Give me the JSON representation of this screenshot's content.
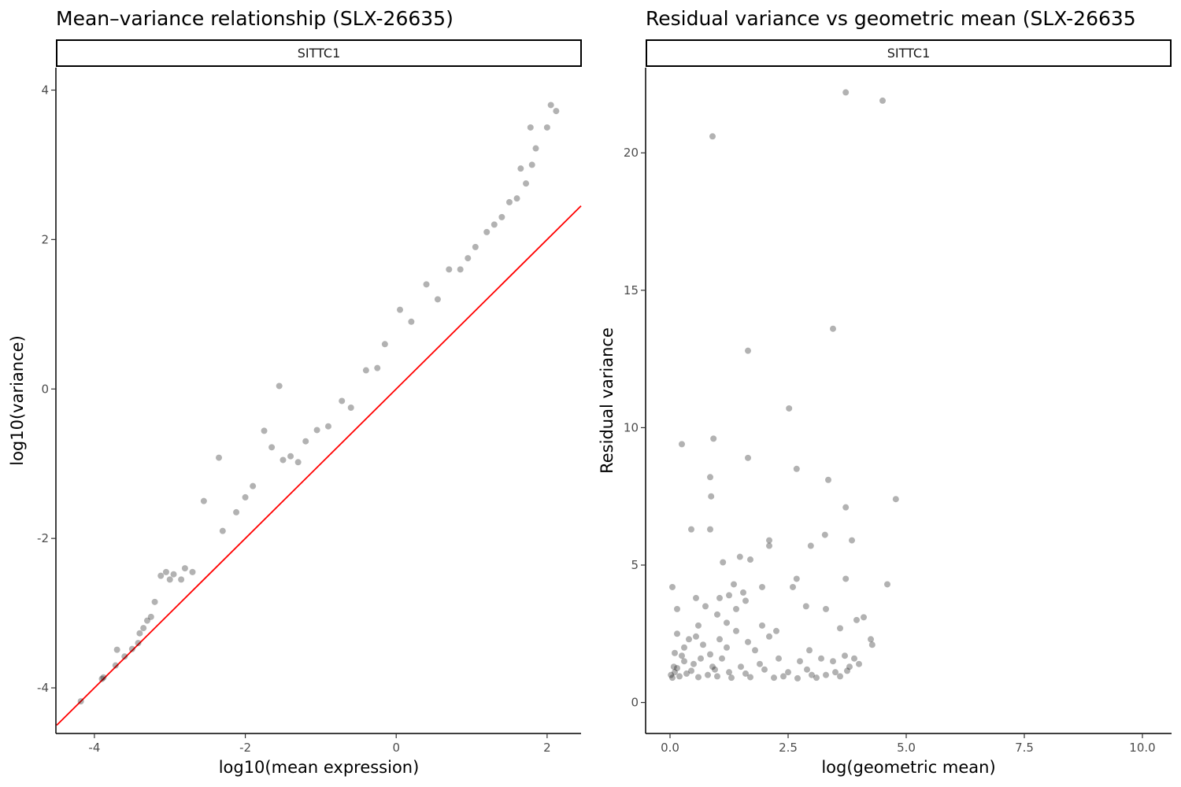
{
  "chart_data": [
    {
      "type": "scatter",
      "title": "Mean–variance relationship (SLX-26635)",
      "facet_label": "SITTC1",
      "xlabel": "log10(mean expression)",
      "ylabel": "log10(variance)",
      "xlim": [
        -4.5,
        2.45
      ],
      "ylim": [
        -4.6,
        4.3
      ],
      "x_ticks": [
        -4,
        -2,
        0,
        2
      ],
      "x_tick_labels": [
        "-4",
        "-2",
        "0",
        "2"
      ],
      "y_ticks": [
        -4,
        -2,
        0,
        2,
        4
      ],
      "y_tick_labels": [
        "-4",
        "-2",
        "0",
        "2",
        "4"
      ],
      "grid": false,
      "point_color": "#000000",
      "point_alpha": 0.3,
      "reference_line": {
        "intercept": 0,
        "slope": 1,
        "color": "#ff0000"
      },
      "series": [
        {
          "values": [
            {
              "x": -4.18,
              "y": -4.18
            },
            {
              "x": -3.9,
              "y": -3.88
            },
            {
              "x": -3.88,
              "y": -3.86
            },
            {
              "x": -3.72,
              "y": -3.7
            },
            {
              "x": -3.7,
              "y": -3.49
            },
            {
              "x": -3.6,
              "y": -3.58
            },
            {
              "x": -3.5,
              "y": -3.48
            },
            {
              "x": -3.42,
              "y": -3.4
            },
            {
              "x": -3.4,
              "y": -3.27
            },
            {
              "x": -3.35,
              "y": -3.2
            },
            {
              "x": -3.3,
              "y": -3.1
            },
            {
              "x": -3.25,
              "y": -3.05
            },
            {
              "x": -3.2,
              "y": -2.85
            },
            {
              "x": -3.12,
              "y": -2.5
            },
            {
              "x": -3.05,
              "y": -2.45
            },
            {
              "x": -3.0,
              "y": -2.55
            },
            {
              "x": -2.95,
              "y": -2.48
            },
            {
              "x": -2.85,
              "y": -2.55
            },
            {
              "x": -2.8,
              "y": -2.4
            },
            {
              "x": -2.7,
              "y": -2.45
            },
            {
              "x": -2.55,
              "y": -1.5
            },
            {
              "x": -2.35,
              "y": -0.92
            },
            {
              "x": -2.3,
              "y": -1.9
            },
            {
              "x": -2.12,
              "y": -1.65
            },
            {
              "x": -2.0,
              "y": -1.45
            },
            {
              "x": -1.9,
              "y": -1.3
            },
            {
              "x": -1.75,
              "y": -0.56
            },
            {
              "x": -1.65,
              "y": -0.78
            },
            {
              "x": -1.55,
              "y": 0.04
            },
            {
              "x": -1.5,
              "y": -0.95
            },
            {
              "x": -1.4,
              "y": -0.9
            },
            {
              "x": -1.3,
              "y": -0.98
            },
            {
              "x": -1.2,
              "y": -0.7
            },
            {
              "x": -1.05,
              "y": -0.55
            },
            {
              "x": -0.9,
              "y": -0.5
            },
            {
              "x": -0.72,
              "y": -0.16
            },
            {
              "x": -0.6,
              "y": -0.25
            },
            {
              "x": -0.4,
              "y": 0.25
            },
            {
              "x": -0.25,
              "y": 0.28
            },
            {
              "x": -0.15,
              "y": 0.6
            },
            {
              "x": 0.05,
              "y": 1.06
            },
            {
              "x": 0.2,
              "y": 0.9
            },
            {
              "x": 0.4,
              "y": 1.4
            },
            {
              "x": 0.55,
              "y": 1.2
            },
            {
              "x": 0.7,
              "y": 1.6
            },
            {
              "x": 0.85,
              "y": 1.6
            },
            {
              "x": 0.95,
              "y": 1.75
            },
            {
              "x": 1.05,
              "y": 1.9
            },
            {
              "x": 1.2,
              "y": 2.1
            },
            {
              "x": 1.3,
              "y": 2.2
            },
            {
              "x": 1.4,
              "y": 2.3
            },
            {
              "x": 1.5,
              "y": 2.5
            },
            {
              "x": 1.6,
              "y": 2.55
            },
            {
              "x": 1.65,
              "y": 2.95
            },
            {
              "x": 1.72,
              "y": 2.75
            },
            {
              "x": 1.8,
              "y": 3.0
            },
            {
              "x": 1.85,
              "y": 3.22
            },
            {
              "x": 1.78,
              "y": 3.5
            },
            {
              "x": 2.0,
              "y": 3.5
            },
            {
              "x": 2.05,
              "y": 3.8
            },
            {
              "x": 2.12,
              "y": 3.72
            }
          ]
        }
      ]
    },
    {
      "type": "scatter",
      "title": "Residual variance vs geometric mean (SLX-26635",
      "facet_label": "SITTC1",
      "xlabel": "log(geometric mean)",
      "ylabel": "Residual variance",
      "xlim": [
        -0.5,
        10.6
      ],
      "ylim": [
        -1.1,
        23.1
      ],
      "x_ticks": [
        0,
        2.5,
        5,
        7.5,
        10
      ],
      "x_tick_labels": [
        "0.0",
        "2.5",
        "5.0",
        "7.5",
        "10.0"
      ],
      "y_ticks": [
        0,
        5,
        10,
        15,
        20
      ],
      "y_tick_labels": [
        "0",
        "5",
        "10",
        "15",
        "20"
      ],
      "grid": false,
      "point_color": "#000000",
      "point_alpha": 0.3,
      "series": [
        {
          "values": [
            {
              "x": 3.72,
              "y": 22.2
            },
            {
              "x": 4.5,
              "y": 21.9
            },
            {
              "x": 0.9,
              "y": 20.6
            },
            {
              "x": 3.45,
              "y": 13.6
            },
            {
              "x": 1.65,
              "y": 12.8
            },
            {
              "x": 2.52,
              "y": 10.7
            },
            {
              "x": 0.92,
              "y": 9.6
            },
            {
              "x": 0.25,
              "y": 9.4
            },
            {
              "x": 1.65,
              "y": 8.9
            },
            {
              "x": 2.68,
              "y": 8.5
            },
            {
              "x": 0.85,
              "y": 8.2
            },
            {
              "x": 3.35,
              "y": 8.1
            },
            {
              "x": 0.87,
              "y": 7.5
            },
            {
              "x": 4.78,
              "y": 7.4
            },
            {
              "x": 3.72,
              "y": 7.1
            },
            {
              "x": 0.45,
              "y": 6.3
            },
            {
              "x": 0.85,
              "y": 6.3
            },
            {
              "x": 3.28,
              "y": 6.1
            },
            {
              "x": 2.1,
              "y": 5.9
            },
            {
              "x": 3.85,
              "y": 5.9
            },
            {
              "x": 2.1,
              "y": 5.7
            },
            {
              "x": 2.98,
              "y": 5.7
            },
            {
              "x": 1.48,
              "y": 5.3
            },
            {
              "x": 1.7,
              "y": 5.2
            },
            {
              "x": 1.12,
              "y": 5.1
            },
            {
              "x": 2.68,
              "y": 4.5
            },
            {
              "x": 3.72,
              "y": 4.5
            },
            {
              "x": 1.35,
              "y": 4.3
            },
            {
              "x": 4.6,
              "y": 4.3
            },
            {
              "x": 1.95,
              "y": 4.2
            },
            {
              "x": 0.05,
              "y": 4.2
            },
            {
              "x": 2.6,
              "y": 4.2
            },
            {
              "x": 1.55,
              "y": 4.0
            },
            {
              "x": 1.25,
              "y": 3.9
            },
            {
              "x": 1.05,
              "y": 3.8
            },
            {
              "x": 0.55,
              "y": 3.8
            },
            {
              "x": 1.6,
              "y": 3.7
            },
            {
              "x": 0.75,
              "y": 3.5
            },
            {
              "x": 1.4,
              "y": 3.4
            },
            {
              "x": 0.15,
              "y": 3.4
            },
            {
              "x": 2.88,
              "y": 3.5
            },
            {
              "x": 3.3,
              "y": 3.4
            },
            {
              "x": 1.0,
              "y": 3.2
            },
            {
              "x": 3.95,
              "y": 3.0
            },
            {
              "x": 4.1,
              "y": 3.1
            },
            {
              "x": 1.2,
              "y": 2.9
            },
            {
              "x": 0.6,
              "y": 2.8
            },
            {
              "x": 1.95,
              "y": 2.8
            },
            {
              "x": 3.6,
              "y": 2.7
            },
            {
              "x": 2.25,
              "y": 2.6
            },
            {
              "x": 1.4,
              "y": 2.6
            },
            {
              "x": 4.25,
              "y": 2.3
            },
            {
              "x": 4.28,
              "y": 2.1
            },
            {
              "x": 2.95,
              "y": 1.9
            },
            {
              "x": 3.7,
              "y": 1.7
            },
            {
              "x": 0.15,
              "y": 2.5
            },
            {
              "x": 0.4,
              "y": 2.3
            },
            {
              "x": 0.7,
              "y": 2.1
            },
            {
              "x": 1.2,
              "y": 2.0
            },
            {
              "x": 1.8,
              "y": 1.9
            },
            {
              "x": 2.3,
              "y": 1.6
            },
            {
              "x": 2.75,
              "y": 1.5
            },
            {
              "x": 3.2,
              "y": 1.6
            },
            {
              "x": 3.45,
              "y": 1.5
            },
            {
              "x": 3.9,
              "y": 1.6
            },
            {
              "x": 0.1,
              "y": 1.8
            },
            {
              "x": 0.3,
              "y": 1.5
            },
            {
              "x": 0.5,
              "y": 1.4
            },
            {
              "x": 0.9,
              "y": 1.3
            },
            {
              "x": 1.5,
              "y": 1.3
            },
            {
              "x": 2.0,
              "y": 1.2
            },
            {
              "x": 2.5,
              "y": 1.1
            },
            {
              "x": 3.0,
              "y": 1.0
            },
            {
              "x": 3.5,
              "y": 1.1
            },
            {
              "x": 3.8,
              "y": 1.3
            },
            {
              "x": 4.0,
              "y": 1.4
            },
            {
              "x": 0.02,
              "y": 1.0
            },
            {
              "x": 0.05,
              "y": 0.9
            },
            {
              "x": 0.1,
              "y": 1.1
            },
            {
              "x": 0.2,
              "y": 0.95
            },
            {
              "x": 0.35,
              "y": 1.05
            },
            {
              "x": 0.6,
              "y": 0.92
            },
            {
              "x": 0.8,
              "y": 1.0
            },
            {
              "x": 1.0,
              "y": 0.95
            },
            {
              "x": 1.3,
              "y": 0.9
            },
            {
              "x": 1.7,
              "y": 0.92
            },
            {
              "x": 2.2,
              "y": 0.9
            },
            {
              "x": 2.7,
              "y": 0.88
            },
            {
              "x": 3.1,
              "y": 0.9
            },
            {
              "x": 3.6,
              "y": 0.95
            },
            {
              "x": 0.08,
              "y": 1.3
            },
            {
              "x": 0.15,
              "y": 1.25
            },
            {
              "x": 0.25,
              "y": 1.7
            },
            {
              "x": 0.45,
              "y": 1.15
            },
            {
              "x": 0.65,
              "y": 1.6
            },
            {
              "x": 0.95,
              "y": 1.2
            },
            {
              "x": 1.1,
              "y": 1.6
            },
            {
              "x": 1.25,
              "y": 1.1
            },
            {
              "x": 1.6,
              "y": 1.05
            },
            {
              "x": 1.9,
              "y": 1.4
            },
            {
              "x": 2.4,
              "y": 0.95
            },
            {
              "x": 2.9,
              "y": 1.2
            },
            {
              "x": 3.3,
              "y": 1.0
            },
            {
              "x": 3.75,
              "y": 1.15
            },
            {
              "x": 0.3,
              "y": 2.0
            },
            {
              "x": 0.55,
              "y": 2.4
            },
            {
              "x": 0.85,
              "y": 1.75
            },
            {
              "x": 1.05,
              "y": 2.3
            },
            {
              "x": 1.65,
              "y": 2.2
            },
            {
              "x": 2.1,
              "y": 2.4
            }
          ]
        }
      ]
    }
  ]
}
